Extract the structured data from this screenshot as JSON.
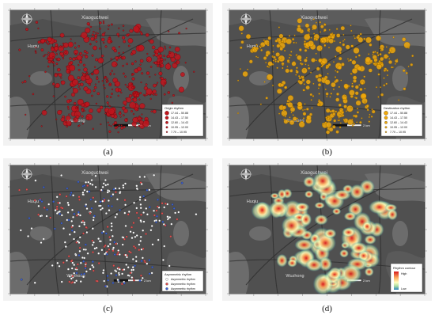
{
  "figure": {
    "captions": [
      "(a)",
      "(b)",
      "(c)",
      "(d)"
    ]
  },
  "map": {
    "place_labels": {
      "north_district": "Xiaoguchwei",
      "west_district": "Huqiu",
      "south_district": "Wuzhong"
    },
    "scale_text": "2 km",
    "colors": {
      "map_bg": "#505050",
      "water": "#6c6c6c",
      "road": "#2e2e2e",
      "frame": "#ffffff",
      "origin": "#c0141c",
      "destination": "#f0a80a",
      "pt_a": "#ffffff",
      "pt_b": "#e05050",
      "pt_c": "#3a5fd0"
    }
  },
  "panels": {
    "a": {
      "legend_title": "Origin rhythm",
      "legend_items": [
        "17.44 – 50.88",
        "14.43 – 17.50",
        "12.60 – 14.43",
        "10.95 – 12.00",
        "7.70 – 10.95"
      ]
    },
    "b": {
      "legend_title": "Destination rhythm",
      "legend_items": [
        "17.44 – 50.88",
        "14.43 – 17.50",
        "12.60 – 14.43",
        "10.95 – 12.00",
        "7.70 – 10.95"
      ]
    },
    "c": {
      "legend_title": "Asymmetric rhythm",
      "legend_items": [
        "Asymmetric rhythm",
        "Asymmetric rhythm",
        "Asymmetric rhythm"
      ]
    },
    "d": {
      "legend_title": "Rhythm contour",
      "legend_high": "High",
      "legend_low": "Low"
    }
  }
}
